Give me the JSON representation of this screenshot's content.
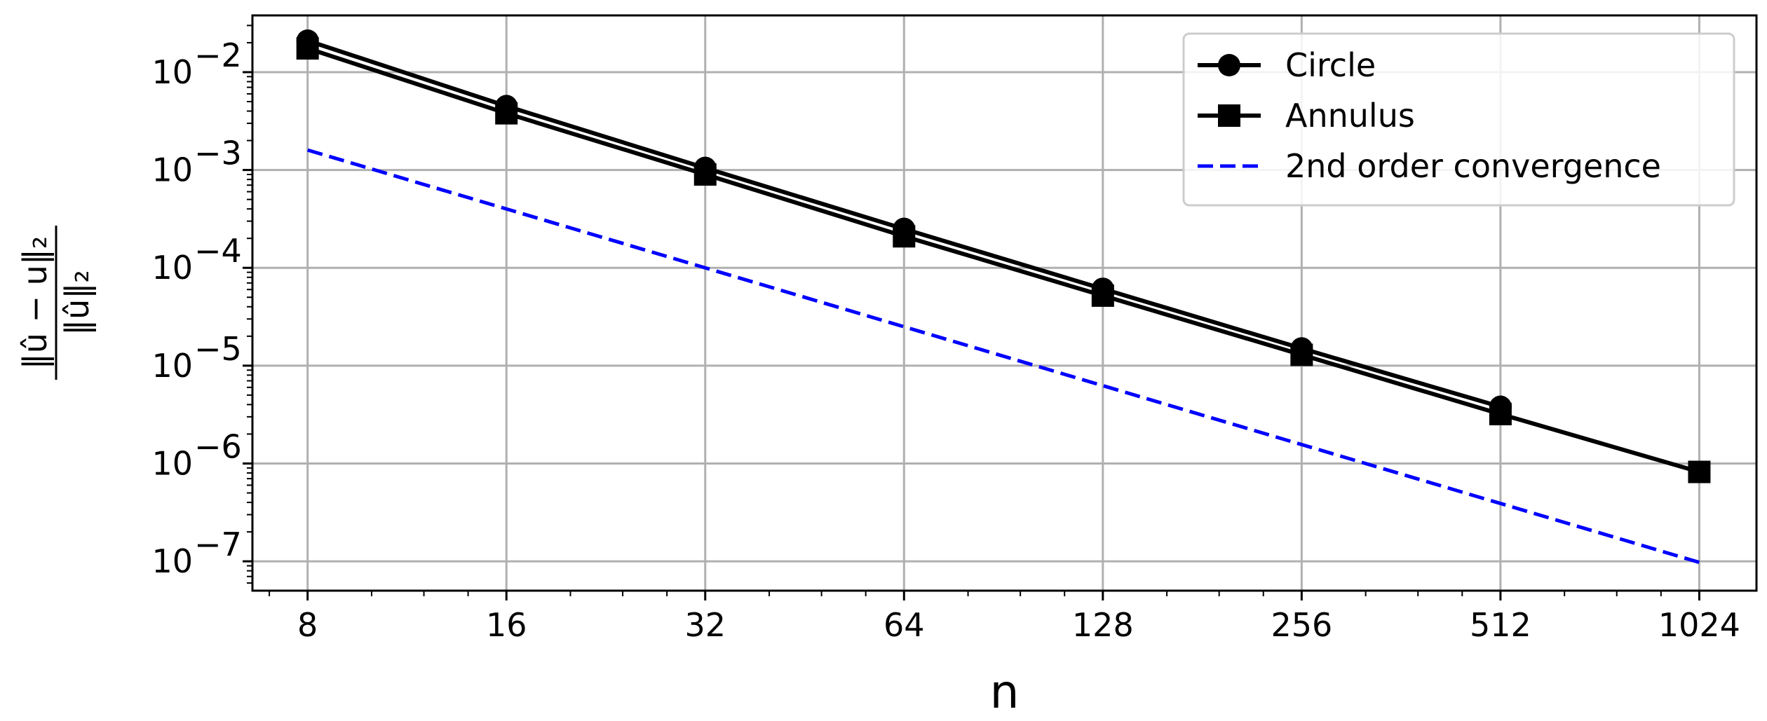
{
  "chart_data": {
    "type": "line",
    "xscale": "log2",
    "yscale": "log10",
    "xlabel": "n",
    "ylabel_numerator": "‖û − u‖₂",
    "ylabel_denominator": "‖û‖₂",
    "x_ticks": [
      8,
      16,
      32,
      64,
      128,
      256,
      512,
      1024
    ],
    "x_tick_labels": [
      "8",
      "16",
      "32",
      "64",
      "128",
      "256",
      "512",
      "1024"
    ],
    "y_ticks": [
      -2,
      -3,
      -4,
      -5,
      -6,
      -7
    ],
    "y_tick_labels": [
      "10",
      "10",
      "10",
      "10",
      "10",
      "10"
    ],
    "y_tick_exponents": [
      "−2",
      "−3",
      "−4",
      "−5",
      "−6",
      "−7"
    ],
    "xlim": [
      6.6,
      1250
    ],
    "ylim_exponent": [
      -7.3,
      -1.42
    ],
    "grid": true,
    "legend_position": "top-right",
    "series": [
      {
        "name": "Circle",
        "marker": "circle",
        "color": "#000000",
        "linestyle": "solid",
        "x": [
          8,
          16,
          32,
          64,
          128,
          256,
          512
        ],
        "y": [
          0.021,
          0.0045,
          0.00105,
          0.00025,
          6.1e-05,
          1.5e-05,
          3.8e-06
        ]
      },
      {
        "name": "Annulus",
        "marker": "square",
        "color": "#000000",
        "linestyle": "solid",
        "x": [
          8,
          16,
          32,
          64,
          128,
          256,
          512,
          1024
        ],
        "y": [
          0.0175,
          0.0038,
          0.0009,
          0.00021,
          5.2e-05,
          1.29e-05,
          3.2e-06,
          8.2e-07
        ]
      },
      {
        "name": "2nd order convergence",
        "marker": "none",
        "color": "#0000ff",
        "linestyle": "dashed",
        "x": [
          8,
          1024
        ],
        "y": [
          0.0016,
          9.76e-08
        ]
      }
    ]
  }
}
